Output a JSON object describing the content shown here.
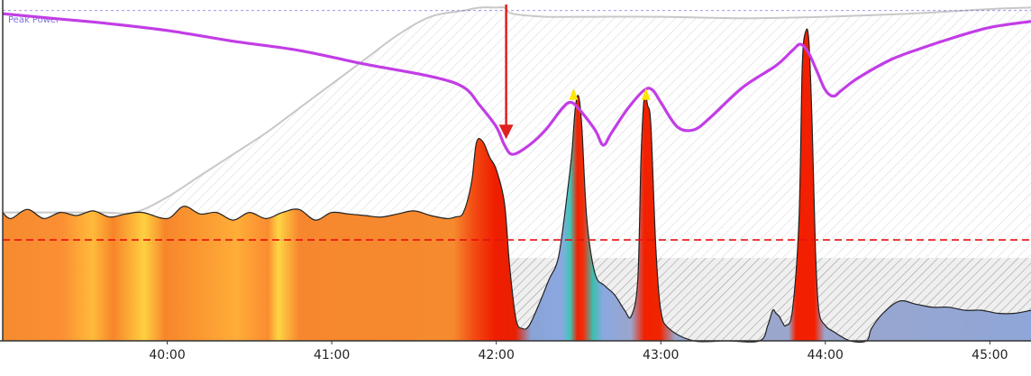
{
  "chart_data": {
    "type": "area",
    "title": "",
    "xlabel": "",
    "ylabel": "",
    "x_range_min": [
      39.0,
      45.25
    ],
    "y_range_w": [
      0,
      1100
    ],
    "grid": false,
    "legend": "none",
    "x_ticks": [
      {
        "value": 40,
        "label": "40:00"
      },
      {
        "value": 41,
        "label": "41:00"
      },
      {
        "value": 42,
        "label": "42:00"
      },
      {
        "value": 43,
        "label": "43:00"
      },
      {
        "value": 44,
        "label": "44:00"
      },
      {
        "value": 45,
        "label": "45:00"
      }
    ],
    "reference_lines": [
      {
        "label": "Peak Power",
        "value": 1080,
        "color": "#7f6fdc",
        "style": "dashed"
      },
      {
        "label": "",
        "value": 330,
        "color": "#e81010",
        "style": "dashed"
      }
    ],
    "series": [
      {
        "kind": "power",
        "color": "#f07a20",
        "outline": "#222222",
        "x": [
          39.0,
          39.05,
          39.15,
          39.25,
          39.35,
          39.45,
          39.55,
          39.65,
          39.75,
          39.85,
          40.0,
          40.1,
          40.2,
          40.3,
          40.4,
          40.5,
          40.6,
          40.7,
          40.8,
          40.9,
          41.0,
          41.1,
          41.2,
          41.3,
          41.4,
          41.5,
          41.6,
          41.7,
          41.75,
          41.8,
          41.85,
          41.88,
          41.92,
          41.96,
          42.0,
          42.05,
          42.08,
          42.12,
          42.16,
          42.2,
          42.26,
          42.32,
          42.38,
          42.44,
          42.46,
          42.48,
          42.5,
          42.52,
          42.55,
          42.6,
          42.66,
          42.72,
          42.78,
          42.82,
          42.86,
          42.88,
          42.9,
          42.92,
          42.94,
          42.97,
          43.0,
          43.05,
          43.2,
          43.4,
          43.6,
          43.65,
          43.68,
          43.7,
          43.72,
          43.74,
          43.76,
          43.8,
          43.84,
          43.86,
          43.88,
          43.9,
          43.92,
          43.94,
          43.96,
          44.0,
          44.05,
          44.15,
          44.25,
          44.28,
          44.35,
          44.45,
          44.55,
          44.65,
          44.75,
          44.85,
          44.95,
          45.05,
          45.15,
          45.25
        ],
        "values": [
          420,
          400,
          430,
          400,
          420,
          410,
          425,
          405,
          415,
          420,
          400,
          440,
          415,
          420,
          395,
          420,
          400,
          420,
          430,
          395,
          420,
          415,
          410,
          405,
          415,
          425,
          410,
          400,
          405,
          420,
          520,
          650,
          650,
          600,
          560,
          450,
          250,
          70,
          40,
          50,
          120,
          200,
          280,
          520,
          620,
          760,
          800,
          700,
          400,
          220,
          180,
          150,
          100,
          80,
          200,
          600,
          800,
          770,
          700,
          300,
          100,
          40,
          0,
          0,
          0,
          50,
          100,
          90,
          80,
          60,
          50,
          100,
          400,
          900,
          1010,
          980,
          700,
          300,
          100,
          50,
          30,
          0,
          0,
          40,
          90,
          130,
          120,
          110,
          110,
          100,
          100,
          90,
          90,
          100
        ]
      },
      {
        "kind": "wbal",
        "color": "#c8c8c8",
        "x": [
          39.0,
          39.3,
          39.6,
          39.8,
          40.0,
          40.2,
          40.4,
          40.6,
          40.8,
          41.0,
          41.2,
          41.4,
          41.6,
          41.8,
          41.9,
          42.0,
          42.05,
          42.1,
          42.3,
          42.5,
          42.6,
          43.0,
          43.5,
          44.0,
          44.5,
          45.0,
          45.25
        ],
        "values": [
          420,
          420,
          420,
          420,
          470,
          540,
          610,
          680,
          760,
          840,
          920,
          1000,
          1060,
          1080,
          1090,
          1090,
          1090,
          1070,
          1060,
          1060,
          1060,
          1060,
          1055,
          1060,
          1070,
          1085,
          1090
        ]
      },
      {
        "kind": "peak_power",
        "color": "#c23de6",
        "x": [
          39.0,
          39.3,
          39.6,
          40.0,
          40.4,
          40.8,
          41.2,
          41.6,
          41.8,
          41.9,
          42.0,
          42.05,
          42.1,
          42.2,
          42.3,
          42.4,
          42.45,
          42.5,
          42.6,
          42.65,
          42.7,
          42.8,
          42.9,
          42.95,
          43.0,
          43.1,
          43.2,
          43.3,
          43.5,
          43.7,
          43.8,
          43.85,
          43.9,
          43.95,
          44.0,
          44.05,
          44.1,
          44.2,
          44.4,
          44.6,
          44.8,
          45.0,
          45.25
        ],
        "values": [
          1070,
          1055,
          1040,
          1015,
          980,
          950,
          905,
          865,
          830,
          770,
          700,
          640,
          610,
          640,
          690,
          760,
          780,
          760,
          690,
          640,
          680,
          760,
          820,
          820,
          780,
          700,
          690,
          730,
          830,
          900,
          950,
          970,
          940,
          880,
          820,
          800,
          820,
          860,
          920,
          960,
          995,
          1025,
          1045
        ]
      }
    ],
    "markers": [
      {
        "kind": "peak",
        "x": 42.47,
        "y": 800,
        "color": "#ffe600"
      },
      {
        "kind": "peak",
        "x": 42.91,
        "y": 800,
        "color": "#ffe600"
      },
      {
        "kind": "indicator",
        "x": 42.06,
        "y_from": 1100,
        "y_to": 660,
        "color": "#e02020"
      }
    ]
  }
}
